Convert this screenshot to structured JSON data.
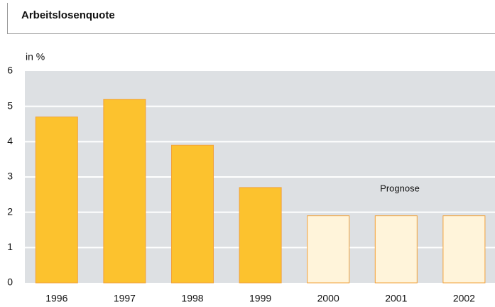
{
  "chart_data": {
    "type": "bar",
    "title": "Arbeitslosenquote",
    "y_label": "in %",
    "annotation": "Prognose",
    "categories": [
      "1996",
      "1997",
      "1998",
      "1999",
      "2000",
      "2001",
      "2002"
    ],
    "values": [
      4.7,
      5.2,
      3.9,
      2.7,
      1.9,
      1.9,
      1.9
    ],
    "colors": [
      "#fcc22e",
      "#fcc22e",
      "#fcc22e",
      "#fcc22e",
      "#fff4da",
      "#fff4da",
      "#fff4da"
    ],
    "edgecolor": "#f2a23a",
    "ylim": [
      0,
      6
    ],
    "yticks": [
      0,
      1,
      2,
      3,
      4,
      5,
      6
    ],
    "grid": true
  }
}
